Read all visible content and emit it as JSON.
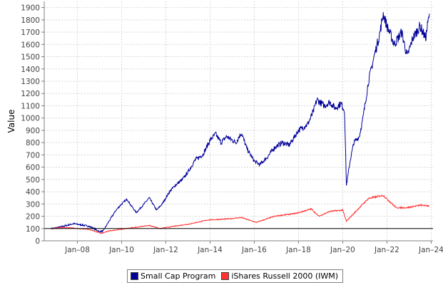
{
  "chart_data": {
    "type": "line",
    "title": "",
    "xlabel": "",
    "ylabel": "Value",
    "ylim": [
      0,
      1950
    ],
    "yticks": [
      0,
      100,
      200,
      300,
      400,
      500,
      600,
      700,
      800,
      900,
      1000,
      1100,
      1200,
      1300,
      1400,
      1500,
      1600,
      1700,
      1800,
      1900
    ],
    "xlim": [
      "2006-07",
      "2024-02"
    ],
    "xticks": [
      {
        "date": "2008-01",
        "label": "Jan–08"
      },
      {
        "date": "2010-01",
        "label": "Jan–10"
      },
      {
        "date": "2012-01",
        "label": "Jan–12"
      },
      {
        "date": "2014-01",
        "label": "Jan–14"
      },
      {
        "date": "2016-01",
        "label": "Jan–16"
      },
      {
        "date": "2018-01",
        "label": "Jan–18"
      },
      {
        "date": "2020-01",
        "label": "Jan–20"
      },
      {
        "date": "2022-01",
        "label": "Jan–22"
      },
      {
        "date": "2024-01",
        "label": "Jan–24"
      }
    ],
    "baseline": 100,
    "grid": true,
    "legend_position": "bottom",
    "series": [
      {
        "name": "Small Cap Program",
        "color": "#000099",
        "points": [
          [
            "2006-11",
            100
          ],
          [
            "2007-03",
            110
          ],
          [
            "2007-07",
            125
          ],
          [
            "2007-11",
            140
          ],
          [
            "2008-03",
            130
          ],
          [
            "2008-07",
            120
          ],
          [
            "2008-10",
            100
          ],
          [
            "2009-01",
            75
          ],
          [
            "2009-03",
            80
          ],
          [
            "2009-07",
            180
          ],
          [
            "2009-10",
            250
          ],
          [
            "2010-01",
            300
          ],
          [
            "2010-04",
            340
          ],
          [
            "2010-06",
            290
          ],
          [
            "2010-09",
            230
          ],
          [
            "2010-12",
            280
          ],
          [
            "2011-04",
            350
          ],
          [
            "2011-08",
            250
          ],
          [
            "2011-11",
            300
          ],
          [
            "2012-03",
            400
          ],
          [
            "2012-06",
            450
          ],
          [
            "2012-10",
            500
          ],
          [
            "2013-01",
            560
          ],
          [
            "2013-05",
            660
          ],
          [
            "2013-09",
            700
          ],
          [
            "2014-01",
            820
          ],
          [
            "2014-04",
            870
          ],
          [
            "2014-07",
            800
          ],
          [
            "2014-10",
            850
          ],
          [
            "2015-03",
            800
          ],
          [
            "2015-06",
            880
          ],
          [
            "2015-09",
            750
          ],
          [
            "2016-01",
            650
          ],
          [
            "2016-04",
            620
          ],
          [
            "2016-08",
            680
          ],
          [
            "2016-12",
            760
          ],
          [
            "2017-04",
            800
          ],
          [
            "2017-08",
            780
          ],
          [
            "2018-01",
            900
          ],
          [
            "2018-06",
            950
          ],
          [
            "2018-09",
            1050
          ],
          [
            "2018-11",
            1150
          ],
          [
            "2019-03",
            1100
          ],
          [
            "2019-06",
            1130
          ],
          [
            "2019-09",
            1080
          ],
          [
            "2019-12",
            1120
          ],
          [
            "2020-02",
            1060
          ],
          [
            "2020-03",
            450
          ],
          [
            "2020-05",
            650
          ],
          [
            "2020-07",
            800
          ],
          [
            "2020-10",
            850
          ],
          [
            "2020-12",
            1000
          ],
          [
            "2021-03",
            1300
          ],
          [
            "2021-06",
            1500
          ],
          [
            "2021-09",
            1680
          ],
          [
            "2021-11",
            1850
          ],
          [
            "2022-01",
            1750
          ],
          [
            "2022-05",
            1600
          ],
          [
            "2022-09",
            1700
          ],
          [
            "2022-12",
            1500
          ],
          [
            "2023-03",
            1650
          ],
          [
            "2023-07",
            1750
          ],
          [
            "2023-10",
            1650
          ],
          [
            "2023-12",
            1850
          ]
        ]
      },
      {
        "name": "iShares Russell 2000 (IWM)",
        "color": "#ff3333",
        "points": [
          [
            "2006-11",
            100
          ],
          [
            "2007-06",
            110
          ],
          [
            "2008-01",
            100
          ],
          [
            "2008-07",
            95
          ],
          [
            "2009-02",
            60
          ],
          [
            "2009-06",
            80
          ],
          [
            "2010-01",
            95
          ],
          [
            "2010-06",
            105
          ],
          [
            "2011-04",
            125
          ],
          [
            "2011-10",
            100
          ],
          [
            "2012-06",
            120
          ],
          [
            "2013-01",
            135
          ],
          [
            "2013-12",
            170
          ],
          [
            "2014-12",
            180
          ],
          [
            "2015-06",
            190
          ],
          [
            "2016-02",
            150
          ],
          [
            "2016-12",
            200
          ],
          [
            "2017-12",
            225
          ],
          [
            "2018-08",
            260
          ],
          [
            "2018-12",
            200
          ],
          [
            "2019-06",
            240
          ],
          [
            "2020-01",
            250
          ],
          [
            "2020-03",
            160
          ],
          [
            "2020-12",
            300
          ],
          [
            "2021-03",
            345
          ],
          [
            "2021-11",
            370
          ],
          [
            "2022-06",
            270
          ],
          [
            "2022-12",
            270
          ],
          [
            "2023-07",
            290
          ],
          [
            "2023-12",
            285
          ]
        ]
      }
    ]
  }
}
